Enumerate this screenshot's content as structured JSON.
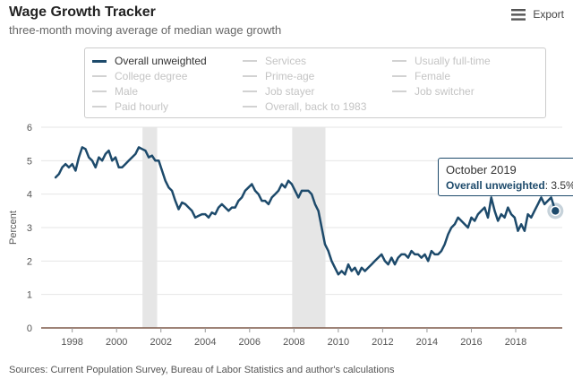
{
  "header": {
    "title": "Wage Growth Tracker",
    "subtitle": "three-month moving average of median wage growth",
    "export_label": "Export"
  },
  "legend": {
    "items": [
      {
        "label": "Overall unweighted",
        "active": true
      },
      {
        "label": "Services",
        "active": false
      },
      {
        "label": "Usually full-time",
        "active": false
      },
      {
        "label": "College degree",
        "active": false
      },
      {
        "label": "Prime-age",
        "active": false
      },
      {
        "label": "Female",
        "active": false
      },
      {
        "label": "Male",
        "active": false
      },
      {
        "label": "Job stayer",
        "active": false
      },
      {
        "label": "Job switcher",
        "active": false
      },
      {
        "label": "Paid hourly",
        "active": false
      },
      {
        "label": "Overall, back to 1983",
        "active": false
      }
    ]
  },
  "tooltip": {
    "date": "October 2019",
    "series_name": "Overall unweighted",
    "value_text": "3.5%",
    "x": 2019.79,
    "y": 3.5
  },
  "source": "Sources: Current Population Survey, Bureau of Labor Statistics and author's calculations",
  "colors": {
    "series": "#1d4a6b",
    "recession": "#e6e6e6",
    "grid": "#e6e6e6",
    "axis": "#7f5a4a"
  },
  "chart_data": {
    "type": "line",
    "xlabel": "",
    "ylabel": "Percent",
    "xlim": [
      1996.6,
      2020.1
    ],
    "ylim": [
      0,
      6
    ],
    "x_ticks": [
      "1998",
      "2000",
      "2002",
      "2004",
      "2006",
      "2008",
      "2010",
      "2012",
      "2014",
      "2016",
      "2018"
    ],
    "y_ticks": [
      "0",
      "1",
      "2",
      "3",
      "4",
      "5",
      "6"
    ],
    "grid": true,
    "legend_position": "top",
    "recessions": [
      [
        2001.17,
        2001.83
      ],
      [
        2007.92,
        2009.42
      ]
    ],
    "series": [
      {
        "name": "Overall unweighted",
        "points": [
          [
            1997.25,
            4.5
          ],
          [
            1997.4,
            4.6
          ],
          [
            1997.55,
            4.8
          ],
          [
            1997.7,
            4.9
          ],
          [
            1997.85,
            4.8
          ],
          [
            1998.0,
            4.9
          ],
          [
            1998.15,
            4.7
          ],
          [
            1998.3,
            5.1
          ],
          [
            1998.45,
            5.4
          ],
          [
            1998.6,
            5.35
          ],
          [
            1998.75,
            5.1
          ],
          [
            1998.9,
            5.0
          ],
          [
            1999.05,
            4.8
          ],
          [
            1999.2,
            5.1
          ],
          [
            1999.35,
            5.0
          ],
          [
            1999.5,
            5.2
          ],
          [
            1999.65,
            5.3
          ],
          [
            1999.8,
            5.0
          ],
          [
            1999.95,
            5.1
          ],
          [
            2000.1,
            4.8
          ],
          [
            2000.25,
            4.8
          ],
          [
            2000.4,
            4.9
          ],
          [
            2000.55,
            5.0
          ],
          [
            2000.7,
            5.1
          ],
          [
            2000.85,
            5.2
          ],
          [
            2001.0,
            5.4
          ],
          [
            2001.15,
            5.35
          ],
          [
            2001.3,
            5.3
          ],
          [
            2001.45,
            5.1
          ],
          [
            2001.6,
            5.15
          ],
          [
            2001.75,
            5.0
          ],
          [
            2001.9,
            5.0
          ],
          [
            2002.05,
            4.7
          ],
          [
            2002.2,
            4.4
          ],
          [
            2002.35,
            4.2
          ],
          [
            2002.5,
            4.1
          ],
          [
            2002.65,
            3.8
          ],
          [
            2002.8,
            3.55
          ],
          [
            2002.95,
            3.75
          ],
          [
            2003.1,
            3.7
          ],
          [
            2003.25,
            3.6
          ],
          [
            2003.4,
            3.5
          ],
          [
            2003.55,
            3.3
          ],
          [
            2003.7,
            3.35
          ],
          [
            2003.85,
            3.4
          ],
          [
            2004.0,
            3.4
          ],
          [
            2004.15,
            3.3
          ],
          [
            2004.3,
            3.45
          ],
          [
            2004.45,
            3.4
          ],
          [
            2004.6,
            3.6
          ],
          [
            2004.75,
            3.7
          ],
          [
            2004.9,
            3.6
          ],
          [
            2005.05,
            3.5
          ],
          [
            2005.2,
            3.6
          ],
          [
            2005.35,
            3.6
          ],
          [
            2005.5,
            3.8
          ],
          [
            2005.65,
            3.9
          ],
          [
            2005.8,
            4.1
          ],
          [
            2005.95,
            4.2
          ],
          [
            2006.1,
            4.3
          ],
          [
            2006.25,
            4.1
          ],
          [
            2006.4,
            4.0
          ],
          [
            2006.55,
            3.8
          ],
          [
            2006.7,
            3.8
          ],
          [
            2006.85,
            3.7
          ],
          [
            2007.0,
            3.9
          ],
          [
            2007.15,
            4.0
          ],
          [
            2007.3,
            4.1
          ],
          [
            2007.45,
            4.3
          ],
          [
            2007.6,
            4.2
          ],
          [
            2007.75,
            4.4
          ],
          [
            2007.9,
            4.3
          ],
          [
            2008.05,
            4.1
          ],
          [
            2008.2,
            3.9
          ],
          [
            2008.35,
            4.1
          ],
          [
            2008.5,
            4.1
          ],
          [
            2008.65,
            4.1
          ],
          [
            2008.8,
            4.0
          ],
          [
            2008.95,
            3.7
          ],
          [
            2009.1,
            3.5
          ],
          [
            2009.25,
            3.0
          ],
          [
            2009.4,
            2.5
          ],
          [
            2009.55,
            2.3
          ],
          [
            2009.7,
            2.0
          ],
          [
            2009.85,
            1.8
          ],
          [
            2010.0,
            1.6
          ],
          [
            2010.15,
            1.7
          ],
          [
            2010.3,
            1.6
          ],
          [
            2010.45,
            1.9
          ],
          [
            2010.6,
            1.7
          ],
          [
            2010.75,
            1.8
          ],
          [
            2010.9,
            1.6
          ],
          [
            2011.05,
            1.8
          ],
          [
            2011.2,
            1.7
          ],
          [
            2011.35,
            1.8
          ],
          [
            2011.5,
            1.9
          ],
          [
            2011.65,
            2.0
          ],
          [
            2011.8,
            2.1
          ],
          [
            2011.95,
            2.2
          ],
          [
            2012.1,
            2.0
          ],
          [
            2012.25,
            1.9
          ],
          [
            2012.4,
            2.1
          ],
          [
            2012.55,
            1.9
          ],
          [
            2012.7,
            2.1
          ],
          [
            2012.85,
            2.2
          ],
          [
            2013.0,
            2.2
          ],
          [
            2013.15,
            2.1
          ],
          [
            2013.3,
            2.3
          ],
          [
            2013.45,
            2.2
          ],
          [
            2013.6,
            2.2
          ],
          [
            2013.75,
            2.1
          ],
          [
            2013.9,
            2.2
          ],
          [
            2014.05,
            2.0
          ],
          [
            2014.2,
            2.3
          ],
          [
            2014.35,
            2.2
          ],
          [
            2014.5,
            2.2
          ],
          [
            2014.65,
            2.3
          ],
          [
            2014.8,
            2.5
          ],
          [
            2014.95,
            2.8
          ],
          [
            2015.1,
            3.0
          ],
          [
            2015.25,
            3.1
          ],
          [
            2015.4,
            3.3
          ],
          [
            2015.55,
            3.2
          ],
          [
            2015.7,
            3.1
          ],
          [
            2015.85,
            3.0
          ],
          [
            2016.0,
            3.3
          ],
          [
            2016.15,
            3.2
          ],
          [
            2016.3,
            3.4
          ],
          [
            2016.45,
            3.5
          ],
          [
            2016.6,
            3.6
          ],
          [
            2016.75,
            3.3
          ],
          [
            2016.9,
            3.9
          ],
          [
            2017.05,
            3.5
          ],
          [
            2017.2,
            3.2
          ],
          [
            2017.35,
            3.4
          ],
          [
            2017.5,
            3.3
          ],
          [
            2017.65,
            3.6
          ],
          [
            2017.8,
            3.4
          ],
          [
            2017.95,
            3.3
          ],
          [
            2018.1,
            2.9
          ],
          [
            2018.25,
            3.1
          ],
          [
            2018.4,
            2.9
          ],
          [
            2018.55,
            3.4
          ],
          [
            2018.7,
            3.3
          ],
          [
            2018.85,
            3.5
          ],
          [
            2019.0,
            3.7
          ],
          [
            2019.15,
            3.9
          ],
          [
            2019.3,
            3.7
          ],
          [
            2019.45,
            3.8
          ],
          [
            2019.6,
            3.9
          ],
          [
            2019.79,
            3.5
          ]
        ]
      }
    ]
  }
}
